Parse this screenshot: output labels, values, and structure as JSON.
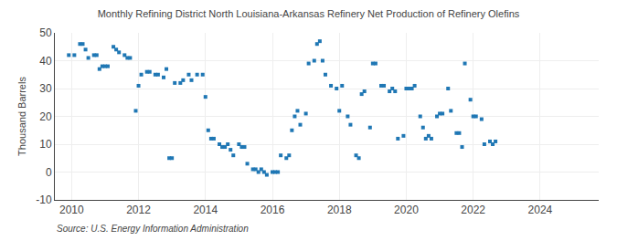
{
  "chart_data": {
    "type": "scatter",
    "title": "Monthly Refining District North Louisiana-Arkansas Refinery Net Production of Refinery Olefins",
    "ylabel": "Thousand Barrels",
    "annotations": [
      "Source: U.S. Energy Information Administration"
    ],
    "marker": "square",
    "grid": true,
    "xlim": [
      2009.5,
      2025.75
    ],
    "xticks": [
      2010,
      2012,
      2014,
      2016,
      2018,
      2020,
      2022,
      2024
    ],
    "ylim": [
      -10,
      50
    ],
    "yticks": [
      -10,
      0,
      10,
      20,
      30,
      40,
      50
    ],
    "x": [
      2009.917,
      2010.083,
      2010.25,
      2010.333,
      2010.417,
      2010.5,
      2010.667,
      2010.75,
      2010.833,
      2010.917,
      2011.0,
      2011.083,
      2011.25,
      2011.333,
      2011.417,
      2011.583,
      2011.667,
      2011.75,
      2011.917,
      2012.0,
      2012.083,
      2012.25,
      2012.333,
      2012.5,
      2012.583,
      2012.75,
      2012.833,
      2012.917,
      2013.0,
      2013.083,
      2013.25,
      2013.333,
      2013.5,
      2013.583,
      2013.75,
      2013.917,
      2014.0,
      2014.083,
      2014.167,
      2014.25,
      2014.417,
      2014.5,
      2014.583,
      2014.667,
      2014.75,
      2014.833,
      2015.0,
      2015.083,
      2015.167,
      2015.25,
      2015.417,
      2015.5,
      2015.583,
      2015.667,
      2015.75,
      2015.833,
      2016.0,
      2016.083,
      2016.167,
      2016.25,
      2016.417,
      2016.5,
      2016.583,
      2016.667,
      2016.75,
      2016.833,
      2017.0,
      2017.083,
      2017.25,
      2017.333,
      2017.417,
      2017.5,
      2017.583,
      2017.75,
      2017.917,
      2018.0,
      2018.083,
      2018.25,
      2018.333,
      2018.5,
      2018.583,
      2018.667,
      2018.75,
      2018.917,
      2019.0,
      2019.083,
      2019.25,
      2019.333,
      2019.5,
      2019.583,
      2019.667,
      2019.75,
      2019.917,
      2020.0,
      2020.083,
      2020.167,
      2020.25,
      2020.417,
      2020.5,
      2020.583,
      2020.667,
      2020.75,
      2020.917,
      2021.0,
      2021.083,
      2021.25,
      2021.333,
      2021.5,
      2021.583,
      2021.667,
      2021.75,
      2021.917,
      2022.0,
      2022.083,
      2022.25,
      2022.333,
      2022.5,
      2022.583,
      2022.667
    ],
    "values": [
      42,
      42,
      46,
      46,
      44,
      41,
      42,
      42,
      37,
      38,
      38,
      38,
      45,
      44,
      43,
      42,
      41,
      41,
      22,
      31,
      35,
      36,
      36,
      35,
      35,
      34,
      37,
      5,
      5,
      32,
      32,
      33,
      35,
      33,
      35,
      35,
      27,
      15,
      12,
      12,
      10,
      9,
      9,
      10,
      8,
      6,
      10,
      9,
      9,
      3,
      1,
      1,
      0,
      1,
      0,
      -1,
      0,
      0,
      0,
      6,
      5,
      6,
      15,
      20,
      22,
      17,
      21,
      39,
      40,
      46,
      47,
      40,
      35,
      31,
      30,
      22,
      31,
      20,
      17,
      6,
      5,
      28,
      29,
      16,
      39,
      39,
      31,
      31,
      29,
      30,
      29,
      12,
      13,
      30,
      30,
      30,
      31,
      20,
      16,
      12,
      13,
      12,
      20,
      21,
      21,
      30,
      22,
      14,
      14,
      9,
      39,
      26,
      20,
      20,
      19,
      10,
      11,
      10,
      11
    ]
  }
}
